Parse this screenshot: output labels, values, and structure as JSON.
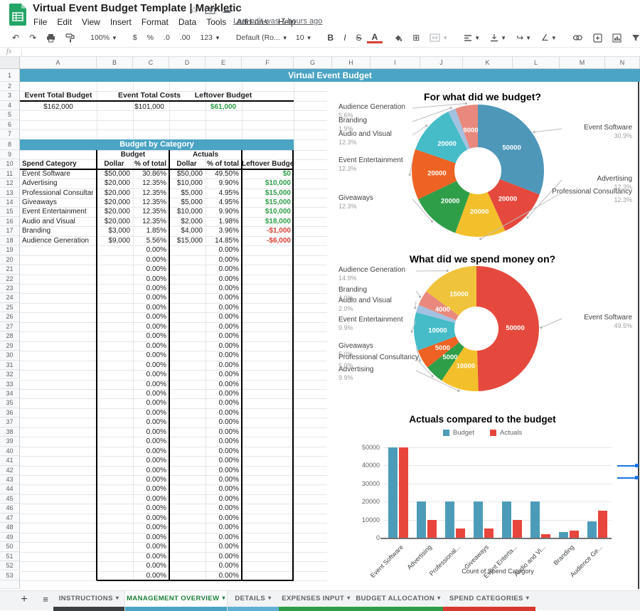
{
  "ui_colors": {
    "teal_banner": "#4ba4c3",
    "positive_green": "#2e9e48",
    "negative_red": "#d93f35",
    "selection_blue": "#1a73e8",
    "active_tab_green": "#188038"
  },
  "titlebar": {
    "title": "Virtual Event Budget Template | Markletic",
    "menus": [
      "File",
      "Edit",
      "View",
      "Insert",
      "Format",
      "Data",
      "Tools",
      "Add-ons",
      "Help"
    ],
    "last_edit": "Last edit was 7 hours ago"
  },
  "toolbar": {
    "zoom": "100%",
    "currency": "$",
    "percent": "%",
    "decrease_decimal": ".0",
    "increase_decimal": ".00",
    "more_formats": "123",
    "font_name": "Default (Ro...",
    "font_size": "10",
    "bold": "B",
    "italic": "I",
    "strikethrough": "S",
    "text_color": "A",
    "functions": "Σ"
  },
  "formula_bar": {
    "label": "fx"
  },
  "grid": {
    "column_letters": [
      "A",
      "B",
      "C",
      "D",
      "E",
      "F",
      "G",
      "H",
      "I",
      "J",
      "K",
      "L",
      "M",
      "N"
    ],
    "row_count": 53
  },
  "sheet": {
    "title_banner": "Virtual Event Budget",
    "summary": {
      "headers": [
        "Event Total Budget",
        "Event Total Costs",
        "Leftover Budget"
      ],
      "values": [
        "$162,000",
        "$101,000",
        "$61,000"
      ]
    },
    "category_table": {
      "banner": "Budget by Category",
      "group_headers": [
        "Budget",
        "Actuals"
      ],
      "columns": [
        "Spend Category",
        "Dollar",
        "% of total",
        "Dollar",
        "% of total",
        "Leftover Budget"
      ],
      "rows": [
        {
          "category": "Event Software",
          "budget": "$50,000",
          "budget_pct": "30.86%",
          "actual": "$50,000",
          "actual_pct": "49.50%",
          "leftover": "$0",
          "leftover_state": "positive"
        },
        {
          "category": "Advertising",
          "budget": "$20,000",
          "budget_pct": "12.35%",
          "actual": "$10,000",
          "actual_pct": "9.90%",
          "leftover": "$10,000",
          "leftover_state": "positive"
        },
        {
          "category": "Professional Consultancy",
          "budget": "$20,000",
          "budget_pct": "12.35%",
          "actual": "$5,000",
          "actual_pct": "4.95%",
          "leftover": "$15,000",
          "leftover_state": "positive"
        },
        {
          "category": "Giveaways",
          "budget": "$20,000",
          "budget_pct": "12.35%",
          "actual": "$5,000",
          "actual_pct": "4.95%",
          "leftover": "$15,000",
          "leftover_state": "positive"
        },
        {
          "category": "Event Entertainment",
          "budget": "$20,000",
          "budget_pct": "12.35%",
          "actual": "$10,000",
          "actual_pct": "9.90%",
          "leftover": "$10,000",
          "leftover_state": "positive"
        },
        {
          "category": "Audio and Visual",
          "budget": "$20,000",
          "budget_pct": "12.35%",
          "actual": "$2,000",
          "actual_pct": "1.98%",
          "leftover": "$18,000",
          "leftover_state": "positive"
        },
        {
          "category": "Branding",
          "budget": "$3,000",
          "budget_pct": "1.85%",
          "actual": "$4,000",
          "actual_pct": "3.96%",
          "leftover": "-$1,000",
          "leftover_state": "negative"
        },
        {
          "category": "Audience Generation",
          "budget": "$9,000",
          "budget_pct": "5.56%",
          "actual": "$15,000",
          "actual_pct": "14.85%",
          "leftover": "-$6,000",
          "leftover_state": "negative"
        }
      ],
      "empty_row_pct": "0.00%",
      "empty_row_start": 19,
      "empty_row_end": 53
    }
  },
  "chart_data": [
    {
      "type": "pie",
      "donut": true,
      "title": "For what did we budget?",
      "total": 162000,
      "slices": [
        {
          "label": "Event Software",
          "value": 50000,
          "pct": "30.9%",
          "color": "#4e97b9",
          "side": "right",
          "ly": 66
        },
        {
          "label": "Advertising",
          "value": 20000,
          "pct": "12.3%",
          "color": "#e5493d",
          "side": "right",
          "ly": 138
        },
        {
          "label": "Professional Consultancy",
          "value": 20000,
          "pct": "12.3%",
          "color": "#f3bf2b",
          "side": "right",
          "ly": 156
        },
        {
          "label": "Giveaways",
          "value": 20000,
          "pct": "12.3%",
          "color": "#2f9e48",
          "side": "left",
          "ly": 165
        },
        {
          "label": "Event Entertainment",
          "value": 20000,
          "pct": "12.3%",
          "color": "#ee6223",
          "side": "left",
          "ly": 112
        },
        {
          "label": "Audio and Visual",
          "value": 20000,
          "pct": "12.3%",
          "color": "#45bcc8",
          "side": "left",
          "ly": 75
        },
        {
          "label": "Branding",
          "value": 3000,
          "pct": "1.9%",
          "color": "#a3c1e0",
          "side": "left",
          "ly": 56
        },
        {
          "label": "Audience Generation",
          "value": 9000,
          "pct": "5.6%",
          "color": "#e9897e",
          "side": "left",
          "ly": 37
        }
      ]
    },
    {
      "type": "pie",
      "donut": true,
      "title": "What did we spend money on?",
      "total": 101000,
      "slices": [
        {
          "label": "Event Software",
          "value": 50000,
          "pct": "49.5%",
          "color": "#e5493d",
          "side": "right",
          "ly": 98
        },
        {
          "label": "Advertising",
          "value": 10000,
          "pct": "9.9%",
          "color": "#f3bf2b",
          "side": "left",
          "ly": 171
        },
        {
          "label": "Professional Consultancy",
          "value": 5000,
          "pct": "5.0%",
          "color": "#2f9e48",
          "side": "left",
          "ly": 154
        },
        {
          "label": "Giveaways",
          "value": 5000,
          "pct": "5.0%",
          "color": "#ee6223",
          "side": "left",
          "ly": 138
        },
        {
          "label": "Event Entertainment",
          "value": 10000,
          "pct": "9.9%",
          "color": "#45bcc8",
          "side": "left",
          "ly": 101
        },
        {
          "label": "Audio and Visual",
          "value": 2000,
          "pct": "2.0%",
          "color": "#a3c1e0",
          "side": "left",
          "ly": 74
        },
        {
          "label": "Branding",
          "value": 4000,
          "pct": "4.0%",
          "color": "#e9897e",
          "side": "left",
          "ly": 59
        },
        {
          "label": "Audience Generation",
          "value": 15000,
          "pct": "14.9%",
          "color": "#f0c33c",
          "side": "left",
          "ly": 31
        }
      ]
    },
    {
      "type": "bar",
      "title": "Actuals compared to the budget",
      "categories": [
        "Event Software",
        "Advertising",
        "Professional...",
        "Giveaways",
        "Event Enterta...",
        "Audio and Vi...",
        "Branding",
        "Audience Ge..."
      ],
      "series": [
        {
          "name": "Budget",
          "color": "#4c9cb9",
          "values": [
            50000,
            20000,
            20000,
            20000,
            20000,
            20000,
            3000,
            9000
          ]
        },
        {
          "name": "Actuals",
          "color": "#e8453c",
          "values": [
            50000,
            10000,
            5000,
            5000,
            10000,
            2000,
            4000,
            15000
          ]
        }
      ],
      "xlabel": "Count of Spend Category",
      "ylim": [
        0,
        50000
      ],
      "yticks": [
        0,
        10000,
        20000,
        30000,
        40000,
        50000
      ],
      "legend_position": "top"
    }
  ],
  "tabs": {
    "items": [
      {
        "label": "INSTRUCTIONS",
        "color": "#3c4043",
        "active": false
      },
      {
        "label": "MANAGEMENT OVERVIEW",
        "color": "#4ba4c3",
        "active": true
      },
      {
        "label": "DETAILS",
        "color": "#5fb1d3",
        "active": false
      },
      {
        "label": "EXPENSES INPUT",
        "color": "#2e9e48",
        "active": false
      },
      {
        "label": "BUDGET ALLOCATION",
        "color": "#2e9e48",
        "active": false
      },
      {
        "label": "SPEND CATEGORIES",
        "color": "#d7382f",
        "active": false
      }
    ]
  }
}
